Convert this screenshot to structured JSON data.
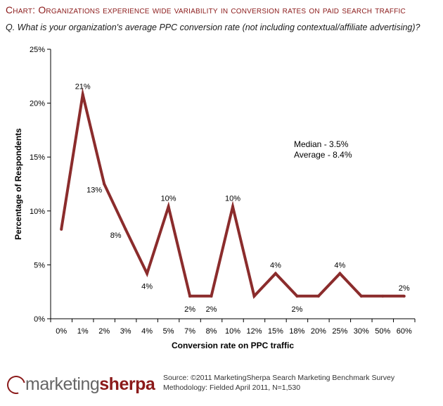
{
  "title": "Chart: Organizations experience wide variability in conversion rates on paid search traffic",
  "question": "Q. What is your organization's average PPC conversion rate (not including contextual/affiliate advertising)?",
  "stats": {
    "median": "Median - 3.5%",
    "average": "Average - 8.4%"
  },
  "logo": {
    "part1": "marketing",
    "part2": "sherpa"
  },
  "source": {
    "line1": "Source: ©2011 MarketingSherpa Search Marketing Benchmark Survey",
    "line2": "Methodology: Fielded April 2011, N=1,530"
  },
  "chart_data": {
    "type": "line",
    "title": "Organizations experience wide variability in conversion rates on paid search traffic",
    "xlabel": "Conversion rate on PPC traffic",
    "ylabel": "Percentage of Respondents",
    "categories": [
      "0%",
      "1%",
      "2%",
      "3%",
      "4%",
      "5%",
      "7%",
      "8%",
      "10%",
      "12%",
      "15%",
      "18%",
      "20%",
      "25%",
      "30%",
      "50%",
      "60%"
    ],
    "values": [
      8.3,
      20.8,
      12.5,
      8.3,
      4.2,
      10.4,
      2.1,
      2.1,
      10.4,
      2.1,
      4.2,
      2.1,
      2.1,
      4.2,
      2.1,
      2.1,
      2.1
    ],
    "data_labels": [
      "",
      "21%",
      "13%",
      "8%",
      "4%",
      "10%",
      "2%",
      "2%",
      "10%",
      "",
      "4%",
      "2%",
      "",
      "4%",
      "",
      "",
      "2%"
    ],
    "ylim": [
      0,
      25
    ],
    "yticks": [
      "0%",
      "5%",
      "10%",
      "15%",
      "20%",
      "25%"
    ],
    "line_color": "#8B2C2C",
    "grid": false,
    "legend": "none"
  }
}
